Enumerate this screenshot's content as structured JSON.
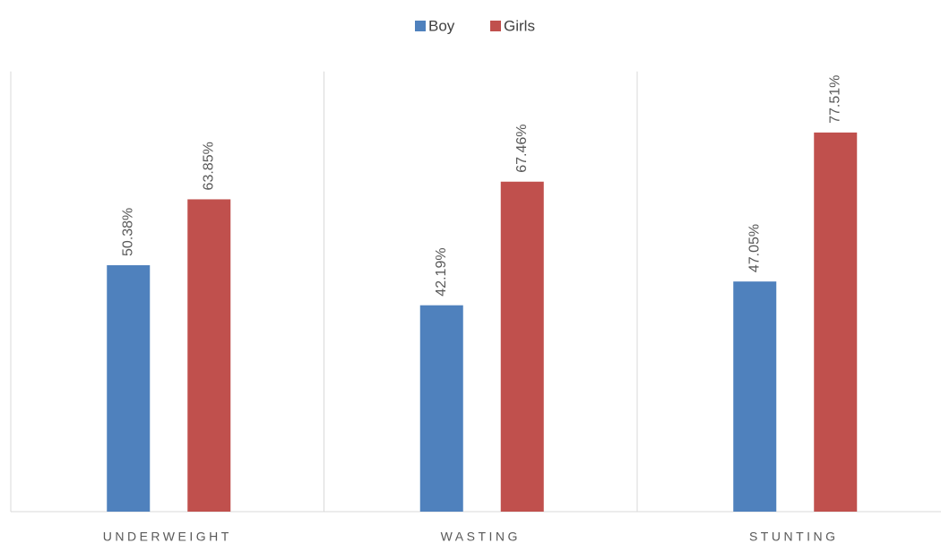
{
  "chart_data": {
    "type": "bar",
    "categories": [
      "UNDERWEIGHT",
      "WASTING",
      "STUNTING"
    ],
    "series": [
      {
        "name": "Boy",
        "color": "#4f81bd",
        "values": [
          50.38,
          42.19,
          47.05
        ],
        "value_labels": [
          "50.38%",
          "42.19%",
          "47.05%"
        ]
      },
      {
        "name": "Girls",
        "color": "#c0504d",
        "values": [
          63.85,
          67.46,
          77.51
        ],
        "value_labels": [
          "63.85%",
          "67.46%",
          "77.51%"
        ]
      }
    ],
    "ylim": [
      0,
      90
    ],
    "legend": "top"
  }
}
